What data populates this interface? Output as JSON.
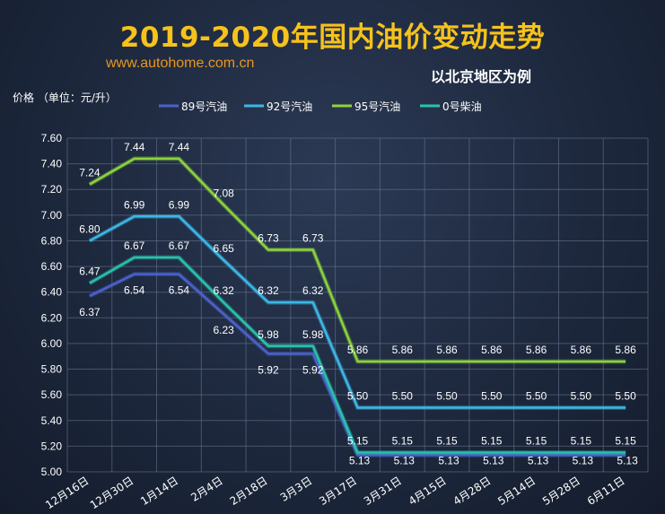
{
  "header": {
    "title": "2019-2020年国内油价变动走势",
    "website": "www.autohome.com.cn",
    "subtitle": "以北京地区为例"
  },
  "colors": {
    "background": "#1d283d",
    "title": "#f6c21c",
    "website": "#e9971c",
    "grid": "#6c7a94",
    "text": "#ffffff"
  },
  "chart_data": {
    "type": "line",
    "ylabel": "价格 （单位：元/升）",
    "ylim": [
      5.0,
      7.6
    ],
    "yticks": [
      "5.00",
      "5.20",
      "5.40",
      "5.60",
      "5.80",
      "6.00",
      "6.20",
      "6.40",
      "6.60",
      "6.80",
      "7.00",
      "7.20",
      "7.40",
      "7.60"
    ],
    "categories": [
      "12月16日",
      "12月30日",
      "1月14日",
      "2月4日",
      "2月18日",
      "3月3日",
      "3月17日",
      "3月31日",
      "4月15日",
      "4月28日",
      "5月14日",
      "5月28日",
      "6月11日"
    ],
    "legend_position": "top",
    "grid": true,
    "series": [
      {
        "name": "89号汽油",
        "color": "#4a62cc",
        "values": [
          6.37,
          6.54,
          6.54,
          6.23,
          5.92,
          5.92,
          5.13,
          5.13,
          5.13,
          5.13,
          5.13,
          5.13,
          5.13
        ],
        "labels": [
          "6.37",
          "6.54",
          "6.54",
          "6.23",
          "5.92",
          "5.92",
          "5.13",
          "5.13",
          "5.13",
          "5.13",
          "5.13",
          "5.13",
          "5.13"
        ]
      },
      {
        "name": "92号汽油",
        "color": "#3cb8e6",
        "values": [
          6.8,
          6.99,
          6.99,
          6.65,
          6.32,
          6.32,
          5.5,
          5.5,
          5.5,
          5.5,
          5.5,
          5.5,
          5.5
        ],
        "labels": [
          "6.80",
          "6.99",
          "6.99",
          "6.65",
          "6.32",
          "6.32",
          "5.50",
          "5.50",
          "5.50",
          "5.50",
          "5.50",
          "5.50",
          "5.50"
        ]
      },
      {
        "name": "95号汽油",
        "color": "#8cd43c",
        "values": [
          7.24,
          7.44,
          7.44,
          7.08,
          6.73,
          6.73,
          5.86,
          5.86,
          5.86,
          5.86,
          5.86,
          5.86,
          5.86
        ],
        "labels": [
          "7.24",
          "7.44",
          "7.44",
          "7.08",
          "6.73",
          "6.73",
          "5.86",
          "5.86",
          "5.86",
          "5.86",
          "5.86",
          "5.86",
          "5.86"
        ]
      },
      {
        "name": "0号柴油",
        "color": "#28c2ad",
        "values": [
          6.47,
          6.67,
          6.67,
          6.32,
          5.98,
          5.98,
          5.15,
          5.15,
          5.15,
          5.15,
          5.15,
          5.15,
          5.15
        ],
        "labels": [
          "6.47",
          "6.67",
          "6.67",
          "6.32",
          "5.98",
          "5.98",
          "5.15",
          "5.15",
          "5.15",
          "5.15",
          "5.15",
          "5.15",
          "5.15"
        ]
      }
    ]
  }
}
